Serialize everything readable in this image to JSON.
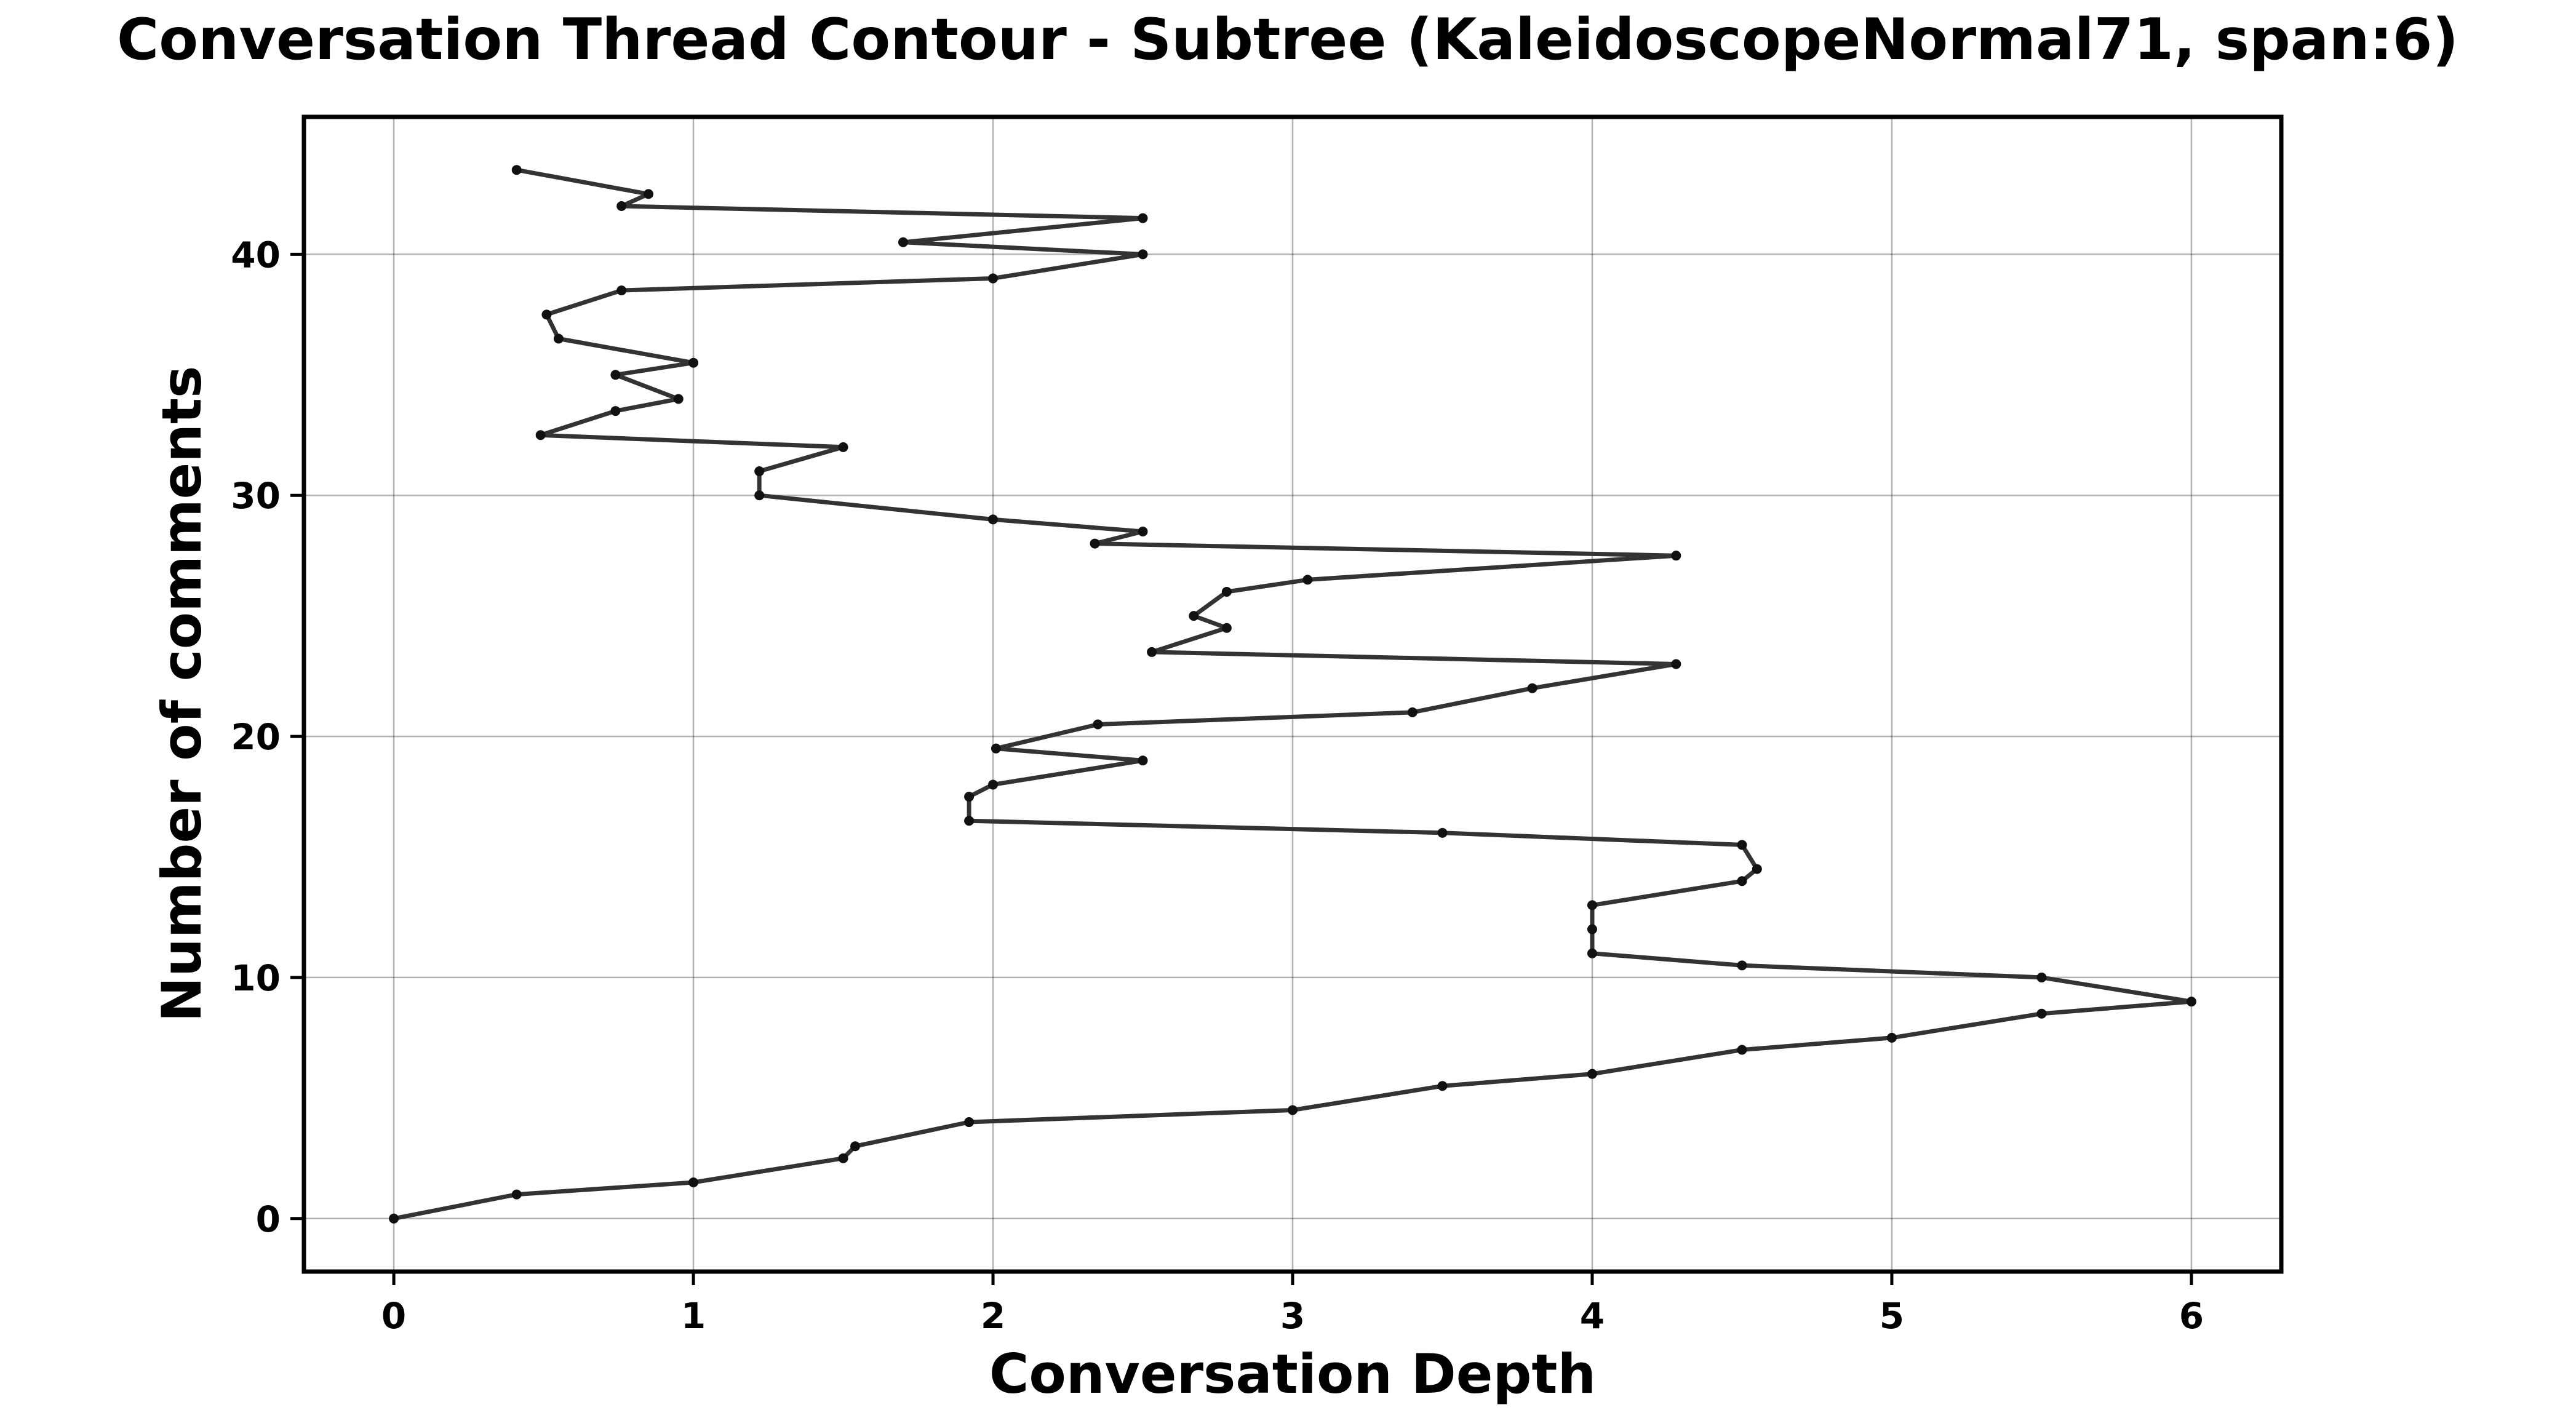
{
  "chart_data": {
    "type": "line",
    "title": "Conversation Thread Contour  - Subtree (KaleidoscopeNormal71, span:6)",
    "xlabel": "Conversation Depth",
    "ylabel": "Number of comments",
    "xlim": [
      -0.3,
      6.3
    ],
    "ylim": [
      -2.2,
      45.7
    ],
    "xticks": [
      0,
      1,
      2,
      3,
      4,
      5,
      6
    ],
    "yticks": [
      0,
      10,
      20,
      30,
      40
    ],
    "grid": true,
    "legend": "none",
    "colors": {
      "line": "#333333",
      "marker": "#111111"
    },
    "series": [
      {
        "x": [
          0,
          0.41,
          1.0,
          1.5,
          1.54,
          1.92,
          3.0,
          3.5,
          4.0,
          4.5,
          5.0,
          5.5,
          6.0,
          5.5,
          4.5,
          4.0,
          4.0,
          4.0,
          4.5,
          4.55,
          4.5,
          3.5,
          1.92,
          1.92,
          2.0,
          2.5,
          2.01,
          2.35,
          3.4,
          3.8,
          4.28,
          2.53,
          2.78,
          2.67,
          2.78,
          3.05,
          4.28,
          2.34,
          2.5,
          2.0,
          1.22,
          1.22,
          1.5,
          0.49,
          0.74,
          0.95,
          0.74,
          1.0,
          0.55,
          0.51,
          0.76,
          2.0,
          2.5,
          1.7,
          2.5,
          0.76,
          0.85,
          0.41
        ],
        "y": [
          0,
          1,
          1.5,
          2.5,
          3,
          4,
          4.5,
          5.5,
          6,
          7,
          7.5,
          8.5,
          9,
          10,
          10.5,
          11,
          12,
          13,
          14,
          14.5,
          15.5,
          16,
          16.5,
          17.5,
          18,
          19,
          19.5,
          20.5,
          21,
          22,
          23,
          23.5,
          24.5,
          25,
          26,
          26.5,
          27.5,
          28,
          28.5,
          29,
          30,
          31,
          32,
          32.5,
          33.5,
          34,
          35,
          35.5,
          36.5,
          37.5,
          38.5,
          39,
          40,
          40.5,
          41.5,
          42,
          42.5,
          43.5
        ]
      }
    ]
  }
}
